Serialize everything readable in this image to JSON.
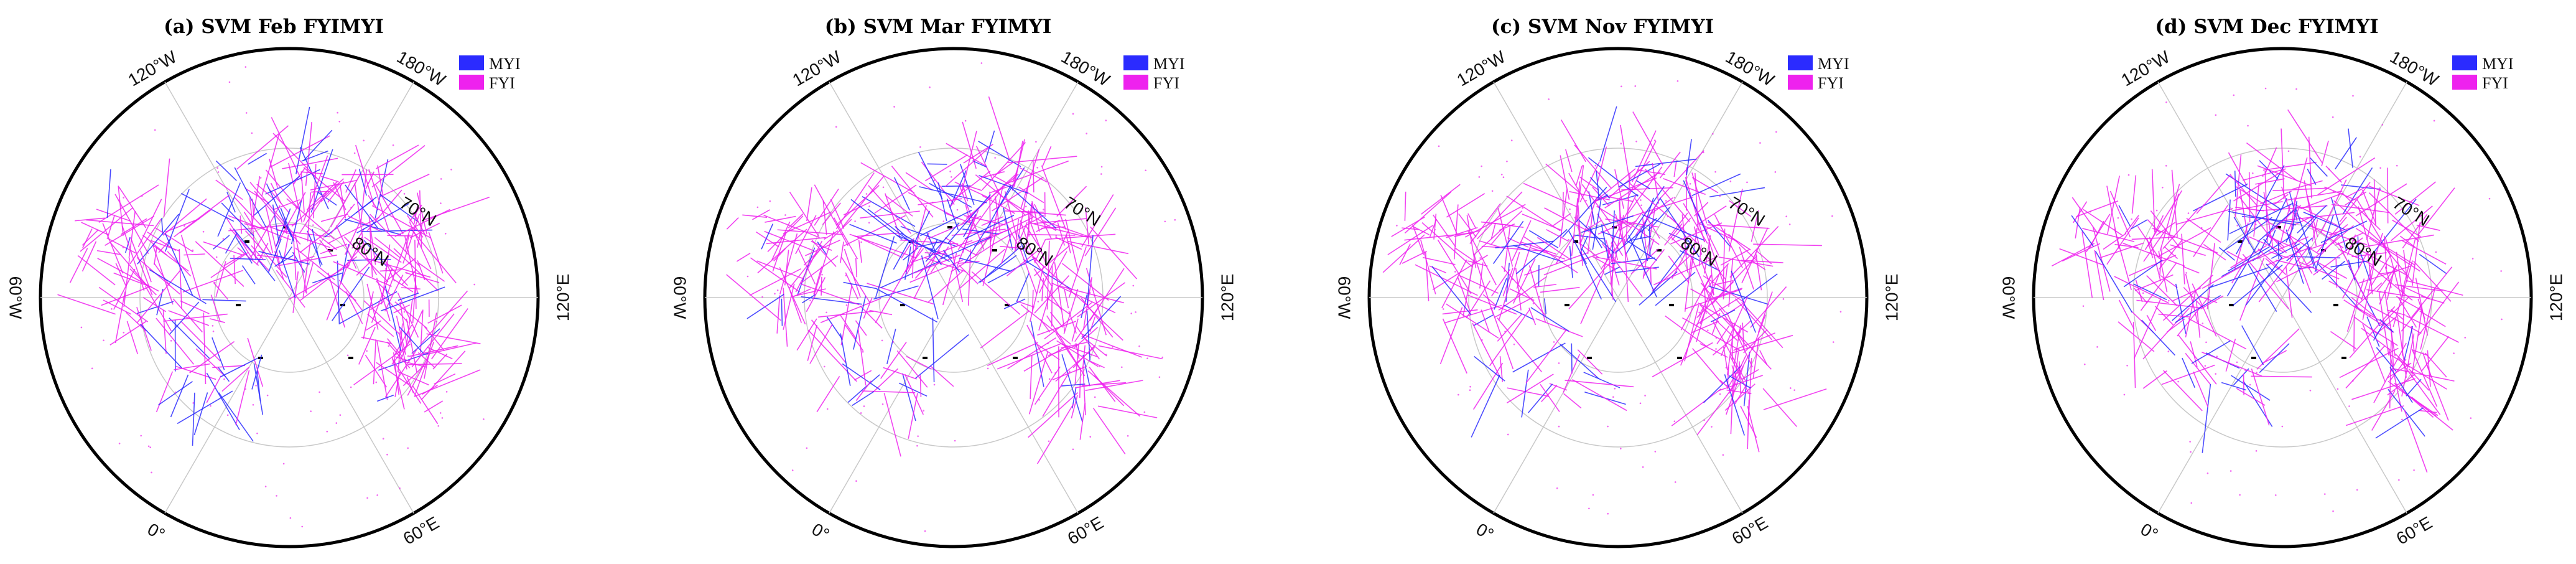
{
  "colors": {
    "myi": "#2b2bff",
    "fyi": "#ee22ee",
    "frame": "#000000",
    "grid": "#c8c8c8"
  },
  "legend": {
    "myi_label": "MYI",
    "fyi_label": "FYI"
  },
  "graticule": {
    "lon_labels": [
      "120°W",
      "180°W",
      "120°E",
      "60°E",
      "0°",
      "60°W"
    ],
    "lat_labels": [
      "70°N",
      "80°N"
    ]
  },
  "panels": [
    {
      "id": "a",
      "title": "(a) SVM Feb FYIMYI"
    },
    {
      "id": "b",
      "title": "(b) SVM Mar FYIMYI"
    },
    {
      "id": "c",
      "title": "(c) SVM Nov FYIMYI"
    },
    {
      "id": "d",
      "title": "(d) SVM Dec FYIMYI"
    }
  ]
}
